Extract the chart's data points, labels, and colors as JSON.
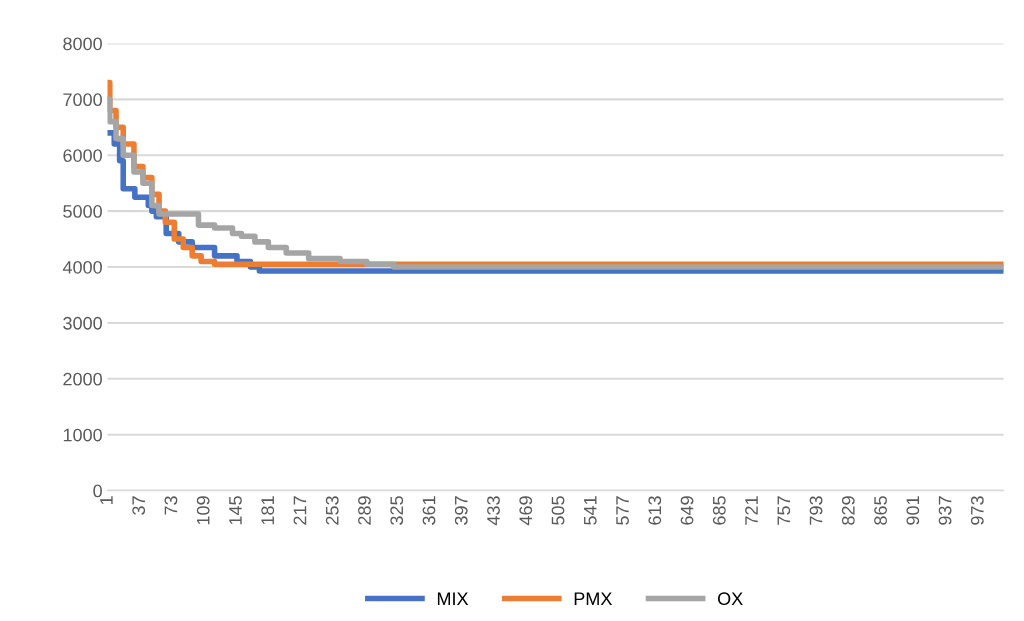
{
  "chart_data": {
    "type": "step",
    "xlim": [
      0.5,
      1000.5
    ],
    "ylim": [
      0,
      8000
    ],
    "yticks": [
      0,
      1000,
      2000,
      3000,
      4000,
      5000,
      6000,
      7000,
      8000
    ],
    "xticks": [
      1,
      37,
      73,
      109,
      145,
      181,
      217,
      253,
      289,
      325,
      361,
      397,
      433,
      469,
      505,
      541,
      577,
      613,
      649,
      685,
      721,
      757,
      793,
      829,
      865,
      901,
      937,
      973
    ],
    "grid": "y",
    "legend": "bottom",
    "line_style": "solid",
    "marker": "none",
    "series": [
      {
        "name": "MIX",
        "color": "#4472c4",
        "x": [
          1,
          8,
          14,
          18,
          31,
          46,
          50,
          55,
          66,
          80,
          95,
          120,
          145,
          160,
          170,
          1000
        ],
        "values": [
          6400,
          6200,
          5900,
          5400,
          5250,
          5100,
          5000,
          4900,
          4600,
          4450,
          4350,
          4200,
          4100,
          4000,
          3930,
          3930
        ]
      },
      {
        "name": "PMX",
        "color": "#ed7d31",
        "x": [
          1,
          3,
          10,
          18,
          30,
          40,
          50,
          58,
          65,
          75,
          85,
          95,
          105,
          120,
          1000
        ],
        "values": [
          7300,
          6800,
          6500,
          6200,
          5800,
          5600,
          5300,
          5000,
          4800,
          4500,
          4350,
          4200,
          4100,
          4050,
          4050
        ]
      },
      {
        "name": "OX",
        "color": "#a5a5a5",
        "x": [
          1,
          3,
          10,
          18,
          30,
          40,
          50,
          58,
          102,
          120,
          140,
          150,
          165,
          180,
          200,
          225,
          260,
          290,
          320,
          1000
        ],
        "values": [
          7000,
          6600,
          6300,
          6000,
          5700,
          5500,
          5100,
          4950,
          4750,
          4700,
          4600,
          4550,
          4450,
          4350,
          4250,
          4150,
          4100,
          4050,
          4000,
          4000
        ]
      }
    ]
  }
}
